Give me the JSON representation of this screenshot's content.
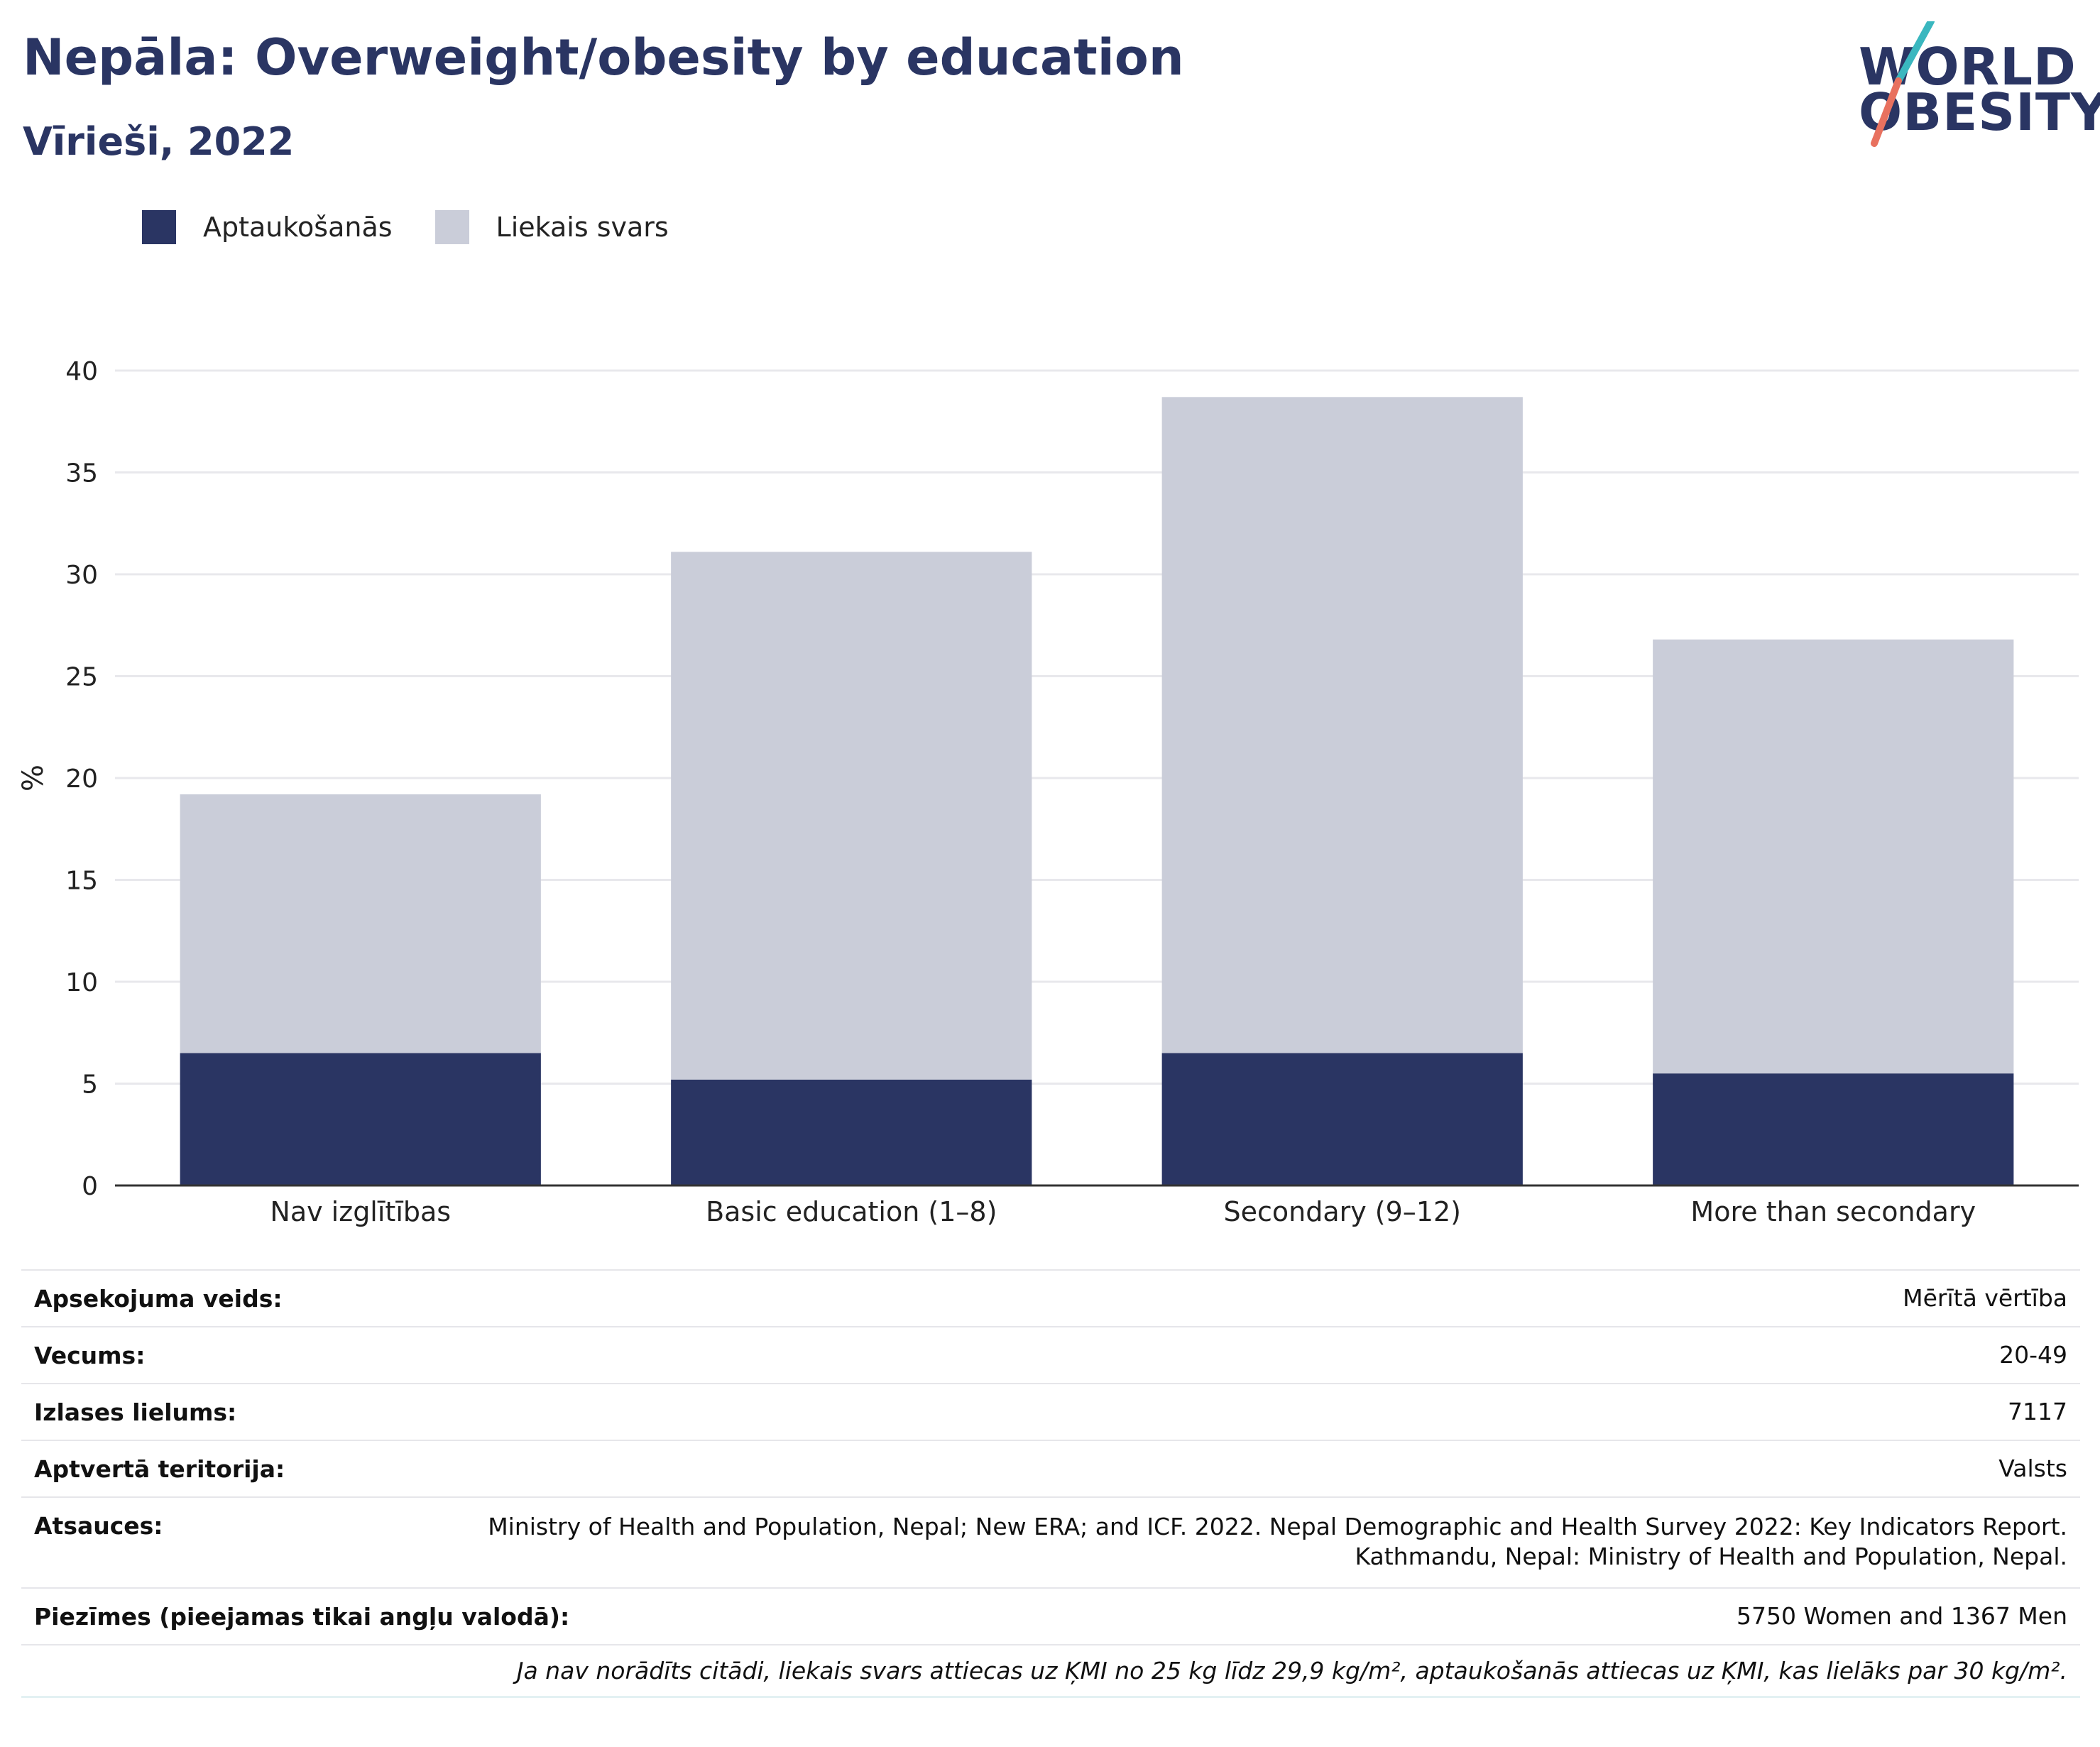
{
  "header": {
    "title": "Nepāla: Overweight/obesity by education",
    "subtitle": "Vīrieši, 2022"
  },
  "logo": {
    "line1": "WORLD",
    "line2": "OBESITY"
  },
  "colors": {
    "obesity": "#2a3563",
    "overweight": "#cacdd9",
    "accent_teal": "#3ab7bf",
    "accent_coral": "#e8715f",
    "grid": "#e8e8ec",
    "axis": "#333333"
  },
  "chart_data": {
    "type": "bar",
    "stacked": true,
    "categories": [
      "Nav izglītības",
      "Basic education (1–8)",
      "Secondary (9–12)",
      "More than secondary"
    ],
    "series": [
      {
        "name": "Aptaukošanās",
        "values": [
          6.5,
          5.2,
          6.5,
          5.5
        ]
      },
      {
        "name": "Liekais svars",
        "values": [
          12.7,
          25.9,
          32.2,
          21.3
        ]
      }
    ],
    "ylabel": "%",
    "ylim": [
      0,
      40
    ],
    "yticks": [
      0,
      5,
      10,
      15,
      20,
      25,
      30,
      35,
      40
    ],
    "grid": true,
    "legend": "top-left"
  },
  "info": {
    "rows": [
      {
        "label": "Apsekojuma veids:",
        "value": "Mērītā vērtība"
      },
      {
        "label": "Vecums:",
        "value": "20-49"
      },
      {
        "label": "Izlases lielums:",
        "value": "7117"
      },
      {
        "label": "Aptvertā teritorija:",
        "value": "Valsts"
      },
      {
        "label": "Atsauces:",
        "value": "Ministry of Health and Population, Nepal; New ERA; and ICF. 2022. Nepal Demographic and Health Survey 2022: Key Indicators Report.",
        "value2": "Kathmandu, Nepal: Ministry of Health and Population, Nepal."
      },
      {
        "label": "Piezīmes (pieejamas tikai angļu valodā):",
        "value": "5750 Women and 1367 Men"
      }
    ],
    "note": "Ja nav norādīts citādi, liekais svars attiecas uz ĶMI no 25 kg līdz 29,9 kg/m², aptaukošanās attiecas uz ĶMI, kas lielāks par 30 kg/m²."
  }
}
